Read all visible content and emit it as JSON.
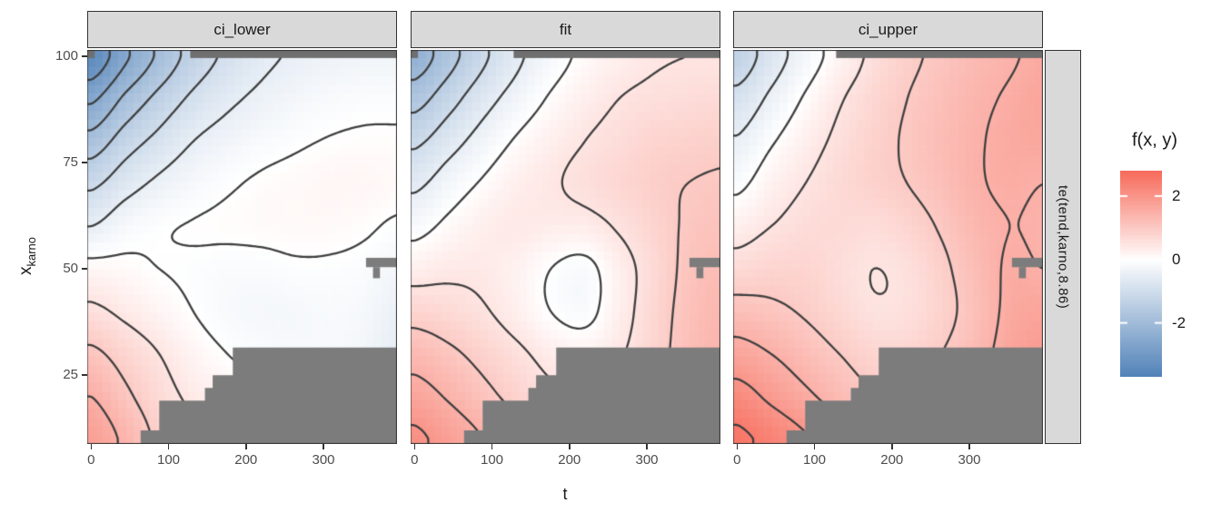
{
  "figure": {
    "facets": [
      "ci_lower",
      "fit",
      "ci_upper"
    ],
    "right_strip_label": "te(tend,karno,8.86)",
    "x_axis": {
      "title": "t",
      "ticks": [
        0,
        100,
        200,
        300
      ],
      "range": [
        -5,
        395
      ]
    },
    "y_axis": {
      "title_base": "x",
      "title_subscript": "karno",
      "ticks": [
        100,
        75,
        50,
        25
      ],
      "range": [
        8.8,
        101.5
      ]
    },
    "legend": {
      "title": "f(x, y)",
      "ticks": [
        2,
        0,
        -2
      ],
      "limits": [
        -3.7,
        2.8
      ],
      "color_low": "#5081B8",
      "color_mid": "#FFFFFF",
      "color_high": "#F76B5B"
    },
    "colors": {
      "strip_bg": "#D9D9D9",
      "strip_border": "#333333",
      "panel_border": "#333333",
      "contour": "#3F3F3F",
      "tick_text": "#4D4D4D",
      "na_gray": "#7C7C7C",
      "na_gray_dark": "#6F6F6F",
      "background": "#FFFFFF"
    }
  },
  "chart_data": {
    "type": "heatmap",
    "subtype": "filled-contour-surface",
    "xlabel": "t",
    "ylabel": "x_karno",
    "legend_title": "f(x, y)",
    "contour_interval": 0.5,
    "contour_levels": [
      -3.5,
      -3,
      -2.5,
      -2,
      -1.5,
      -1,
      -0.5,
      0,
      0.5,
      1,
      1.5,
      2,
      2.5
    ],
    "t_points": [
      0,
      44,
      88,
      132,
      176,
      219,
      263,
      307,
      351,
      395
    ],
    "karno_points": [
      100,
      90,
      80,
      70,
      60,
      50,
      40,
      30,
      20,
      10
    ],
    "facets": [
      {
        "name": "ci_lower",
        "grid": [
          [
            -3.4,
            -2.6,
            -1.9,
            -1.3,
            -0.9,
            -0.6,
            -0.45,
            -0.35,
            -0.3,
            -0.3
          ],
          [
            -2.6,
            -1.9,
            -1.35,
            -0.9,
            -0.6,
            -0.4,
            -0.25,
            -0.15,
            -0.1,
            -0.1
          ],
          [
            -1.8,
            -1.25,
            -0.85,
            -0.5,
            -0.3,
            -0.15,
            -0.05,
            0.02,
            0.05,
            0.05
          ],
          [
            -1.1,
            -0.7,
            -0.4,
            -0.2,
            -0.05,
            0.05,
            0.1,
            0.15,
            0.15,
            0.1
          ],
          [
            -0.5,
            -0.2,
            -0.05,
            0.02,
            0.05,
            0.08,
            0.1,
            0.1,
            0.05,
            -0.05
          ],
          [
            0.15,
            0.1,
            0.0,
            -0.05,
            -0.1,
            -0.1,
            -0.05,
            -0.05,
            -0.1,
            -0.25
          ],
          [
            0.6,
            0.4,
            0.2,
            0.0,
            -0.15,
            -0.2,
            -0.2,
            -0.15,
            -0.2,
            -0.4
          ],
          [
            1.1,
            0.8,
            0.5,
            0.2,
            0.0,
            -0.1,
            -0.15,
            -0.15,
            -0.25,
            -0.5
          ],
          [
            1.5,
            1.1,
            0.7,
            0.4,
            0.2,
            0.1,
            0.05,
            0.0,
            -0.1,
            -0.3
          ],
          [
            1.8,
            1.4,
            0.9,
            0.6,
            0.4,
            0.3,
            0.25,
            0.2,
            0.1,
            0.0
          ]
        ]
      },
      {
        "name": "fit",
        "grid": [
          [
            -2.3,
            -1.7,
            -1.1,
            -0.6,
            -0.2,
            0.1,
            0.3,
            0.45,
            0.5,
            0.5
          ],
          [
            -1.7,
            -1.2,
            -0.7,
            -0.3,
            0.05,
            0.3,
            0.5,
            0.6,
            0.65,
            0.7
          ],
          [
            -1.1,
            -0.7,
            -0.3,
            0.05,
            0.3,
            0.5,
            0.65,
            0.8,
            0.85,
            0.9
          ],
          [
            -0.6,
            -0.25,
            0.05,
            0.3,
            0.45,
            0.6,
            0.75,
            0.9,
            1.0,
            1.05
          ],
          [
            -0.15,
            0.1,
            0.3,
            0.4,
            0.35,
            0.35,
            0.55,
            0.8,
            1.05,
            1.15
          ],
          [
            0.3,
            0.4,
            0.4,
            0.25,
            0.0,
            -0.12,
            0.3,
            0.7,
            1.1,
            1.25
          ],
          [
            0.8,
            0.7,
            0.55,
            0.3,
            0.0,
            -0.12,
            0.3,
            0.75,
            1.15,
            1.35
          ],
          [
            1.3,
            1.1,
            0.85,
            0.6,
            0.35,
            0.25,
            0.45,
            0.8,
            1.2,
            1.4
          ],
          [
            1.7,
            1.45,
            1.15,
            0.85,
            0.6,
            0.5,
            0.6,
            0.9,
            1.25,
            1.45
          ],
          [
            2.1,
            1.8,
            1.5,
            1.2,
            0.9,
            0.8,
            0.85,
            1.0,
            1.3,
            1.5
          ]
        ]
      },
      {
        "name": "ci_upper",
        "grid": [
          [
            -1.3,
            -0.75,
            -0.25,
            0.2,
            0.6,
            0.9,
            1.1,
            1.3,
            1.45,
            1.6
          ],
          [
            -0.85,
            -0.4,
            0.05,
            0.45,
            0.75,
            1.0,
            1.2,
            1.4,
            1.55,
            1.7
          ],
          [
            -0.45,
            -0.05,
            0.3,
            0.6,
            0.85,
            1.05,
            1.25,
            1.45,
            1.6,
            1.65
          ],
          [
            -0.1,
            0.25,
            0.5,
            0.7,
            0.85,
            1.0,
            1.2,
            1.45,
            1.55,
            1.5
          ],
          [
            0.3,
            0.5,
            0.65,
            0.7,
            0.65,
            0.8,
            1.05,
            1.35,
            1.5,
            1.45
          ],
          [
            0.7,
            0.8,
            0.8,
            0.65,
            0.5,
            0.6,
            0.9,
            1.25,
            1.55,
            1.5
          ],
          [
            1.2,
            1.1,
            0.95,
            0.75,
            0.55,
            0.6,
            0.85,
            1.2,
            1.6,
            1.7
          ],
          [
            1.7,
            1.5,
            1.25,
            1.0,
            0.8,
            0.8,
            1.0,
            1.3,
            1.7,
            1.9
          ],
          [
            2.2,
            1.9,
            1.6,
            1.3,
            1.05,
            1.0,
            1.15,
            1.45,
            1.85,
            2.1
          ],
          [
            2.6,
            2.35,
            2.05,
            1.75,
            1.45,
            1.35,
            1.4,
            1.6,
            2.0,
            2.3
          ]
        ]
      }
    ],
    "na_mask": {
      "top_bar": {
        "t": [
          128,
          397
        ],
        "k": [
          99.6,
          101.5
        ]
      },
      "corner_cell": {
        "t": [
          -5,
          4.5
        ],
        "k": [
          99.6,
          101.5
        ],
        "facets": [
          "ci_lower",
          "fit"
        ]
      },
      "staircase_polygon": [
        [
          64,
          8.8
        ],
        [
          64,
          12
        ],
        [
          88,
          12
        ],
        [
          88,
          19
        ],
        [
          147,
          19
        ],
        [
          147,
          22
        ],
        [
          157,
          22
        ],
        [
          157,
          25
        ],
        [
          183,
          25
        ],
        [
          183,
          31.5
        ],
        [
          397,
          31.5
        ],
        [
          397,
          8.8
        ]
      ],
      "t_marker_bar": {
        "t": [
          355,
          394
        ],
        "k": [
          50.4,
          52.6
        ]
      },
      "t_marker_tab": {
        "t": [
          364,
          373
        ],
        "k": [
          47.8,
          50.4
        ]
      }
    }
  }
}
